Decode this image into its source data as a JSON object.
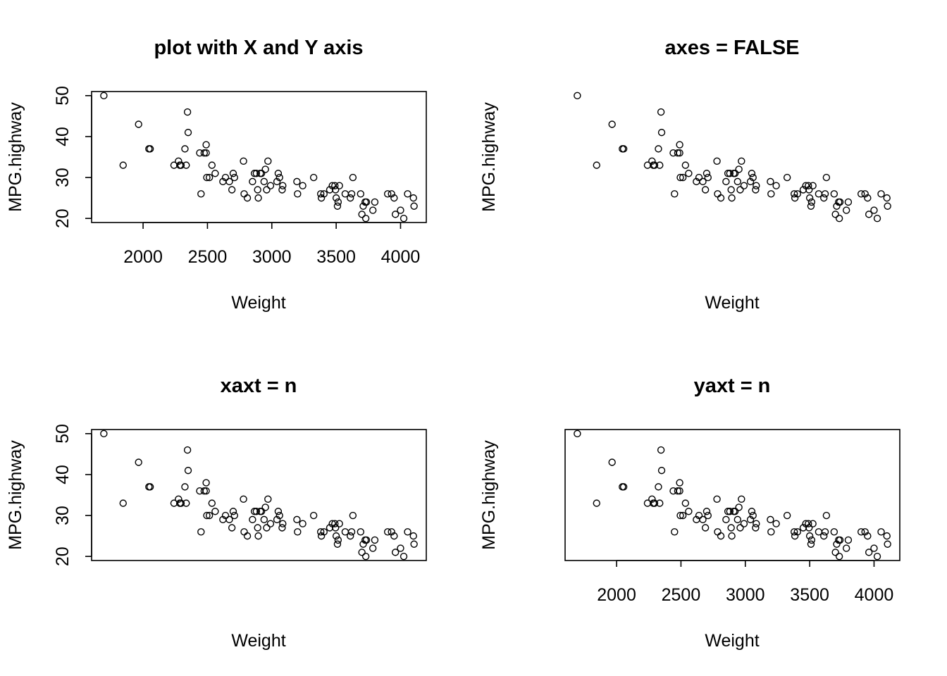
{
  "chart_data": [
    {
      "type": "scatter",
      "title": "plot with X and Y axis",
      "xlabel": "Weight",
      "ylabel": "MPG.highway",
      "show_x_axis": true,
      "show_y_axis": true,
      "show_box": true,
      "xticks": [
        2000,
        2500,
        3000,
        3500,
        4000
      ],
      "yticks": [
        20,
        30,
        40,
        50
      ],
      "xlim": [
        1600,
        4200
      ],
      "ylim": [
        19,
        51
      ]
    },
    {
      "type": "scatter",
      "title": "axes = FALSE",
      "xlabel": "Weight",
      "ylabel": "MPG.highway",
      "show_x_axis": false,
      "show_y_axis": false,
      "show_box": false,
      "xticks": [],
      "yticks": [],
      "xlim": [
        1600,
        4200
      ],
      "ylim": [
        19,
        51
      ]
    },
    {
      "type": "scatter",
      "title": "xaxt = n",
      "xlabel": "Weight",
      "ylabel": "MPG.highway",
      "show_x_axis": false,
      "show_y_axis": true,
      "show_box": true,
      "xticks": [],
      "yticks": [
        20,
        30,
        40,
        50
      ],
      "xlim": [
        1600,
        4200
      ],
      "ylim": [
        19,
        51
      ]
    },
    {
      "type": "scatter",
      "title": "yaxt = n",
      "xlabel": "Weight",
      "ylabel": "MPG.highway",
      "show_x_axis": true,
      "show_y_axis": false,
      "show_box": true,
      "xticks": [
        2000,
        2500,
        3000,
        3500,
        4000
      ],
      "yticks": [],
      "xlim": [
        1600,
        4200
      ],
      "ylim": [
        19,
        51
      ]
    }
  ],
  "points": {
    "x": [
      1695,
      1845,
      1965,
      2045,
      2055,
      2240,
      2275,
      2285,
      2295,
      2325,
      2335,
      2345,
      2350,
      2440,
      2450,
      2475,
      2490,
      2490,
      2495,
      2515,
      2535,
      2560,
      2620,
      2640,
      2670,
      2690,
      2700,
      2710,
      2780,
      2785,
      2810,
      2850,
      2865,
      2880,
      2890,
      2895,
      2910,
      2920,
      2940,
      2950,
      2960,
      2970,
      2990,
      3040,
      3050,
      3060,
      3080,
      3085,
      3195,
      3200,
      3240,
      3325,
      3380,
      3385,
      3405,
      3450,
      3470,
      3490,
      3495,
      3500,
      3510,
      3515,
      3525,
      3570,
      3610,
      3620,
      3630,
      3690,
      3700,
      3710,
      3725,
      3730,
      3735,
      3785,
      3800,
      3900,
      3930,
      3950,
      3960,
      4000,
      4025,
      4055,
      4100,
      4105
    ],
    "y": [
      50,
      33,
      43,
      37,
      37,
      33,
      34,
      33,
      33,
      37,
      33,
      46,
      41,
      36,
      26,
      36,
      38,
      36,
      30,
      30,
      33,
      31,
      29,
      30,
      29,
      27,
      31,
      30,
      34,
      26,
      25,
      29,
      31,
      31,
      27,
      25,
      31,
      31,
      29,
      32,
      27,
      34,
      28,
      29,
      31,
      30,
      27,
      28,
      29,
      26,
      28,
      30,
      26,
      25,
      26,
      27,
      28,
      28,
      27,
      25,
      23,
      24,
      28,
      26,
      25,
      26,
      30,
      26,
      21,
      23,
      24,
      20,
      24,
      22,
      24,
      26,
      26,
      25,
      21,
      22,
      20,
      26,
      25,
      23
    ]
  }
}
